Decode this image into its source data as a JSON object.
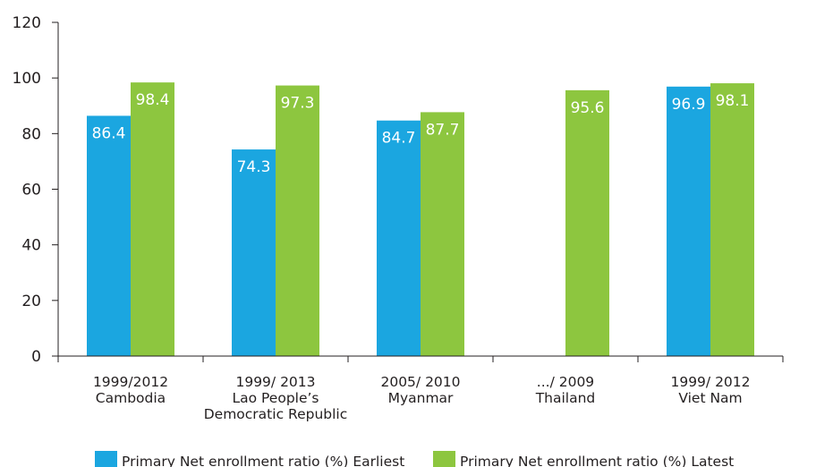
{
  "chart_data": {
    "type": "bar",
    "categories": [
      [
        "1999/2012",
        "Cambodia"
      ],
      [
        "1999/ 2013",
        "Lao People’s",
        "Democratic Republic"
      ],
      [
        "2005/ 2010",
        "Myanmar"
      ],
      [
        ".../ 2009",
        "Thailand"
      ],
      [
        "1999/ 2012",
        "Viet Nam"
      ]
    ],
    "series": [
      {
        "name": "Primary Net enrollment ratio (%) Earliest",
        "color": "#1ba6e0",
        "values": [
          86.4,
          74.3,
          84.7,
          null,
          96.9
        ]
      },
      {
        "name": "Primary Net enrollment ratio (%) Latest",
        "color": "#8dc63f",
        "values": [
          98.4,
          97.3,
          87.7,
          95.6,
          98.1
        ]
      }
    ],
    "data_labels": [
      [
        "86.4",
        "74.3",
        "84.7",
        "",
        "96.9"
      ],
      [
        "98.4",
        "97.3",
        "87.7",
        "95.6",
        "98.1"
      ]
    ],
    "yticks": [
      "0",
      "20",
      "40",
      "60",
      "80",
      "100",
      "120"
    ],
    "ylim": [
      0,
      120
    ],
    "legend_position": "bottom",
    "title": "",
    "xlabel": "",
    "ylabel": ""
  }
}
